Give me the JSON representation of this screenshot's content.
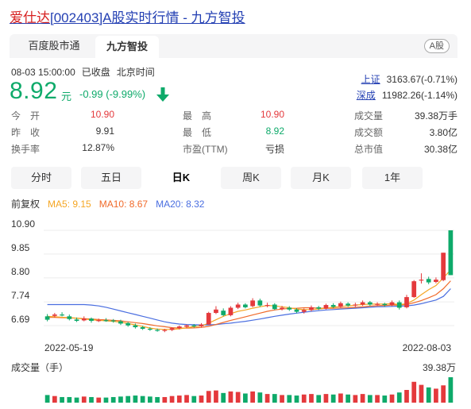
{
  "header": {
    "title_name": "爱仕达",
    "title_rest": "[002403]A股实时行情 - 九方智投"
  },
  "tabs": [
    {
      "label": "百度股市通"
    },
    {
      "label": "九方智投"
    }
  ],
  "market_badge": "A股",
  "quote": {
    "date": "08-03 15:00:00",
    "status": "已收盘",
    "timezone": "北京时间",
    "price": "8.92",
    "unit": "元",
    "change": "-0.99",
    "change_pct": "(-9.99%)"
  },
  "indices": [
    {
      "name": "上证",
      "value": "3163.67(-0.71%)"
    },
    {
      "name": "深成",
      "value": "11982.26(-1.14%)"
    }
  ],
  "stats": {
    "open_label": "今　开",
    "open": "10.90",
    "prev_label": "昨　收",
    "prev": "9.91",
    "turnover_label": "换手率",
    "turnover": "12.87%",
    "high_label": "最　高",
    "high": "10.90",
    "low_label": "最　低",
    "low": "8.92",
    "pe_label": "市盈(TTM)",
    "pe": "亏损",
    "vol_label": "成交量",
    "vol": "39.38万手",
    "amt_label": "成交额",
    "amt": "3.80亿",
    "mcap_label": "总市值",
    "mcap": "30.38亿"
  },
  "periods": [
    "分时",
    "五日",
    "日K",
    "周K",
    "月K",
    "1年"
  ],
  "active_period": "日K",
  "ma_labels": {
    "mode": "前复权",
    "ma5": "MA5: 9.15",
    "ma10": "MA10: 8.67",
    "ma20": "MA20: 8.32"
  },
  "colors": {
    "up": "#e4393c",
    "down": "#0eaa6a",
    "ma5": "#f5a623",
    "ma10": "#f06a2a",
    "ma20": "#4a6ee0",
    "link": "#2440b3"
  },
  "chart_data": {
    "type": "candlestick",
    "y_ticks": [
      "10.90",
      "9.85",
      "8.80",
      "7.74",
      "6.69"
    ],
    "ylim": [
      6.69,
      10.9
    ],
    "x_labels": [
      "2022-05-19",
      "2022-08-03"
    ],
    "volume_label": "成交量（手）",
    "volume_max_label": "39.38万",
    "candles": [
      {
        "o": 7.1,
        "c": 6.95,
        "h": 7.2,
        "l": 6.88
      },
      {
        "o": 7.12,
        "c": 7.18,
        "h": 7.25,
        "l": 7.05
      },
      {
        "o": 7.18,
        "c": 7.15,
        "h": 7.28,
        "l": 7.1
      },
      {
        "o": 7.1,
        "c": 6.98,
        "h": 7.18,
        "l": 6.92
      },
      {
        "o": 6.96,
        "c": 6.9,
        "h": 7.05,
        "l": 6.85
      },
      {
        "o": 6.92,
        "c": 7.0,
        "h": 7.1,
        "l": 6.88
      },
      {
        "o": 7.0,
        "c": 6.9,
        "h": 7.05,
        "l": 6.82
      },
      {
        "o": 6.9,
        "c": 6.93,
        "h": 7.0,
        "l": 6.85
      },
      {
        "o": 6.93,
        "c": 6.9,
        "h": 7.02,
        "l": 6.86
      },
      {
        "o": 6.92,
        "c": 6.88,
        "h": 6.98,
        "l": 6.82
      },
      {
        "o": 6.88,
        "c": 6.78,
        "h": 6.95,
        "l": 6.72
      },
      {
        "o": 6.8,
        "c": 6.7,
        "h": 6.85,
        "l": 6.64
      },
      {
        "o": 6.7,
        "c": 6.62,
        "h": 6.78,
        "l": 6.56
      },
      {
        "o": 6.62,
        "c": 6.55,
        "h": 6.68,
        "l": 6.5
      },
      {
        "o": 6.55,
        "c": 6.52,
        "h": 6.62,
        "l": 6.46
      },
      {
        "o": 6.5,
        "c": 6.46,
        "h": 6.56,
        "l": 6.42
      },
      {
        "o": 6.46,
        "c": 6.5,
        "h": 6.55,
        "l": 6.4
      },
      {
        "o": 6.5,
        "c": 6.58,
        "h": 6.62,
        "l": 6.45
      },
      {
        "o": 6.58,
        "c": 6.65,
        "h": 6.7,
        "l": 6.52
      },
      {
        "o": 6.64,
        "c": 6.7,
        "h": 6.74,
        "l": 6.58
      },
      {
        "o": 6.7,
        "c": 6.66,
        "h": 6.76,
        "l": 6.6
      },
      {
        "o": 6.66,
        "c": 6.74,
        "h": 6.8,
        "l": 6.62
      },
      {
        "o": 6.74,
        "c": 7.25,
        "h": 7.3,
        "l": 6.72
      },
      {
        "o": 7.25,
        "c": 7.4,
        "h": 7.55,
        "l": 7.2
      },
      {
        "o": 7.35,
        "c": 7.15,
        "h": 7.45,
        "l": 7.1
      },
      {
        "o": 7.15,
        "c": 7.48,
        "h": 7.55,
        "l": 7.1
      },
      {
        "o": 7.48,
        "c": 7.62,
        "h": 7.7,
        "l": 7.42
      },
      {
        "o": 7.62,
        "c": 7.5,
        "h": 7.68,
        "l": 7.45
      },
      {
        "o": 7.55,
        "c": 7.8,
        "h": 7.9,
        "l": 7.5
      },
      {
        "o": 7.8,
        "c": 7.58,
        "h": 7.88,
        "l": 7.52
      },
      {
        "o": 7.58,
        "c": 7.6,
        "h": 7.7,
        "l": 7.5
      },
      {
        "o": 7.62,
        "c": 7.42,
        "h": 7.68,
        "l": 7.38
      },
      {
        "o": 7.42,
        "c": 7.48,
        "h": 7.56,
        "l": 7.36
      },
      {
        "o": 7.48,
        "c": 7.4,
        "h": 7.55,
        "l": 7.34
      },
      {
        "o": 7.4,
        "c": 7.3,
        "h": 7.46,
        "l": 7.24
      },
      {
        "o": 7.3,
        "c": 7.38,
        "h": 7.45,
        "l": 7.22
      },
      {
        "o": 7.38,
        "c": 7.5,
        "h": 7.58,
        "l": 7.32
      },
      {
        "o": 7.5,
        "c": 7.44,
        "h": 7.56,
        "l": 7.38
      },
      {
        "o": 7.44,
        "c": 7.6,
        "h": 7.66,
        "l": 7.4
      },
      {
        "o": 7.6,
        "c": 7.52,
        "h": 7.68,
        "l": 7.46
      },
      {
        "o": 7.52,
        "c": 7.68,
        "h": 7.75,
        "l": 7.48
      },
      {
        "o": 7.66,
        "c": 7.58,
        "h": 7.72,
        "l": 7.52
      },
      {
        "o": 7.58,
        "c": 7.62,
        "h": 7.7,
        "l": 7.52
      },
      {
        "o": 7.62,
        "c": 7.72,
        "h": 7.8,
        "l": 7.56
      },
      {
        "o": 7.72,
        "c": 7.62,
        "h": 7.78,
        "l": 7.56
      },
      {
        "o": 7.62,
        "c": 7.65,
        "h": 7.72,
        "l": 7.55
      },
      {
        "o": 7.65,
        "c": 7.6,
        "h": 7.7,
        "l": 7.52
      },
      {
        "o": 7.6,
        "c": 7.72,
        "h": 7.8,
        "l": 7.55
      },
      {
        "o": 7.72,
        "c": 7.48,
        "h": 7.8,
        "l": 7.4
      },
      {
        "o": 7.5,
        "c": 7.95,
        "h": 8.05,
        "l": 7.45
      },
      {
        "o": 7.95,
        "c": 8.65,
        "h": 8.7,
        "l": 7.92
      },
      {
        "o": 8.7,
        "c": 8.72,
        "h": 9.0,
        "l": 8.55
      },
      {
        "o": 8.75,
        "c": 8.6,
        "h": 8.85,
        "l": 8.52
      },
      {
        "o": 8.62,
        "c": 8.72,
        "h": 8.82,
        "l": 8.56
      },
      {
        "o": 8.7,
        "c": 9.91,
        "h": 9.91,
        "l": 8.65
      },
      {
        "o": 10.9,
        "c": 8.92,
        "h": 10.9,
        "l": 8.92
      }
    ],
    "ma5": [
      7.1,
      7.08,
      7.06,
      7.04,
      7.02,
      6.98,
      6.95,
      6.92,
      6.9,
      6.88,
      6.84,
      6.78,
      6.72,
      6.65,
      6.58,
      6.54,
      6.52,
      6.52,
      6.55,
      6.6,
      6.64,
      6.68,
      6.8,
      6.95,
      7.1,
      7.22,
      7.32,
      7.38,
      7.46,
      7.52,
      7.58,
      7.56,
      7.52,
      7.48,
      7.42,
      7.4,
      7.4,
      7.42,
      7.46,
      7.5,
      7.54,
      7.56,
      7.6,
      7.62,
      7.64,
      7.64,
      7.64,
      7.66,
      7.62,
      7.66,
      7.82,
      8.06,
      8.28,
      8.46,
      8.8,
      9.15
    ],
    "ma10": [
      7.05,
      7.05,
      7.04,
      7.03,
      7.02,
      7.0,
      6.98,
      6.96,
      6.94,
      6.92,
      6.9,
      6.86,
      6.82,
      6.78,
      6.73,
      6.68,
      6.64,
      6.6,
      6.58,
      6.58,
      6.59,
      6.61,
      6.66,
      6.74,
      6.83,
      6.92,
      7.0,
      7.08,
      7.16,
      7.24,
      7.32,
      7.38,
      7.42,
      7.45,
      7.46,
      7.48,
      7.48,
      7.46,
      7.46,
      7.46,
      7.47,
      7.48,
      7.5,
      7.52,
      7.55,
      7.57,
      7.58,
      7.6,
      7.6,
      7.62,
      7.7,
      7.8,
      7.92,
      8.06,
      8.32,
      8.67
    ],
    "ma20": [
      7.62,
      7.62,
      7.62,
      7.62,
      7.62,
      7.62,
      7.6,
      7.56,
      7.5,
      7.42,
      7.34,
      7.26,
      7.18,
      7.1,
      7.02,
      6.94,
      6.86,
      6.8,
      6.76,
      6.74,
      6.73,
      6.72,
      6.72,
      6.74,
      6.77,
      6.8,
      6.84,
      6.88,
      6.93,
      6.98,
      7.04,
      7.1,
      7.15,
      7.2,
      7.24,
      7.28,
      7.32,
      7.35,
      7.38,
      7.4,
      7.42,
      7.44,
      7.46,
      7.48,
      7.5,
      7.52,
      7.53,
      7.54,
      7.55,
      7.56,
      7.6,
      7.66,
      7.74,
      7.82,
      7.98,
      8.32
    ],
    "volume": [
      0.3,
      0.26,
      0.22,
      0.22,
      0.2,
      0.24,
      0.22,
      0.2,
      0.2,
      0.22,
      0.24,
      0.26,
      0.28,
      0.26,
      0.24,
      0.22,
      0.22,
      0.26,
      0.28,
      0.3,
      0.26,
      0.28,
      0.46,
      0.48,
      0.38,
      0.44,
      0.42,
      0.36,
      0.44,
      0.4,
      0.34,
      0.34,
      0.3,
      0.3,
      0.28,
      0.32,
      0.34,
      0.3,
      0.34,
      0.32,
      0.36,
      0.32,
      0.3,
      0.34,
      0.3,
      0.3,
      0.28,
      0.32,
      0.4,
      0.5,
      0.82,
      0.7,
      0.6,
      0.55,
      0.68,
      1.0
    ]
  }
}
